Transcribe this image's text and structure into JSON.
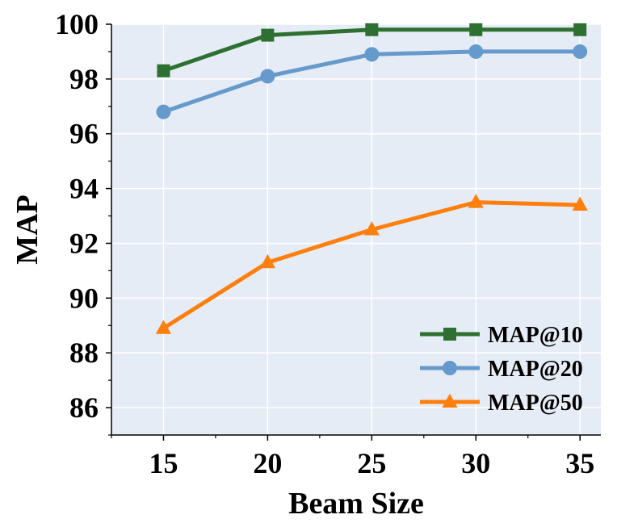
{
  "chart_data": {
    "type": "line",
    "title": "",
    "xlabel": "Beam Size",
    "ylabel": "MAP",
    "x": [
      15,
      20,
      25,
      30,
      35
    ],
    "xticks": [
      15,
      20,
      25,
      30,
      35
    ],
    "yticks": [
      86,
      88,
      90,
      92,
      94,
      96,
      98,
      100
    ],
    "xlim": [
      12.5,
      36
    ],
    "ylim": [
      85,
      100
    ],
    "grid": true,
    "legend_position": "bottom-right",
    "colors": {
      "background": "#e5ecf5",
      "grid": "#ffffff"
    },
    "series": [
      {
        "name": "MAP@10",
        "values": [
          98.3,
          99.6,
          99.8,
          99.8,
          99.8
        ],
        "color": "#2e7032",
        "marker": "square"
      },
      {
        "name": "MAP@20",
        "values": [
          96.8,
          98.1,
          98.9,
          99.0,
          99.0
        ],
        "color": "#6699cc",
        "marker": "circle"
      },
      {
        "name": "MAP@50",
        "values": [
          88.9,
          91.3,
          92.5,
          93.5,
          93.4
        ],
        "color": "#ff7f0e",
        "marker": "triangle"
      }
    ]
  }
}
